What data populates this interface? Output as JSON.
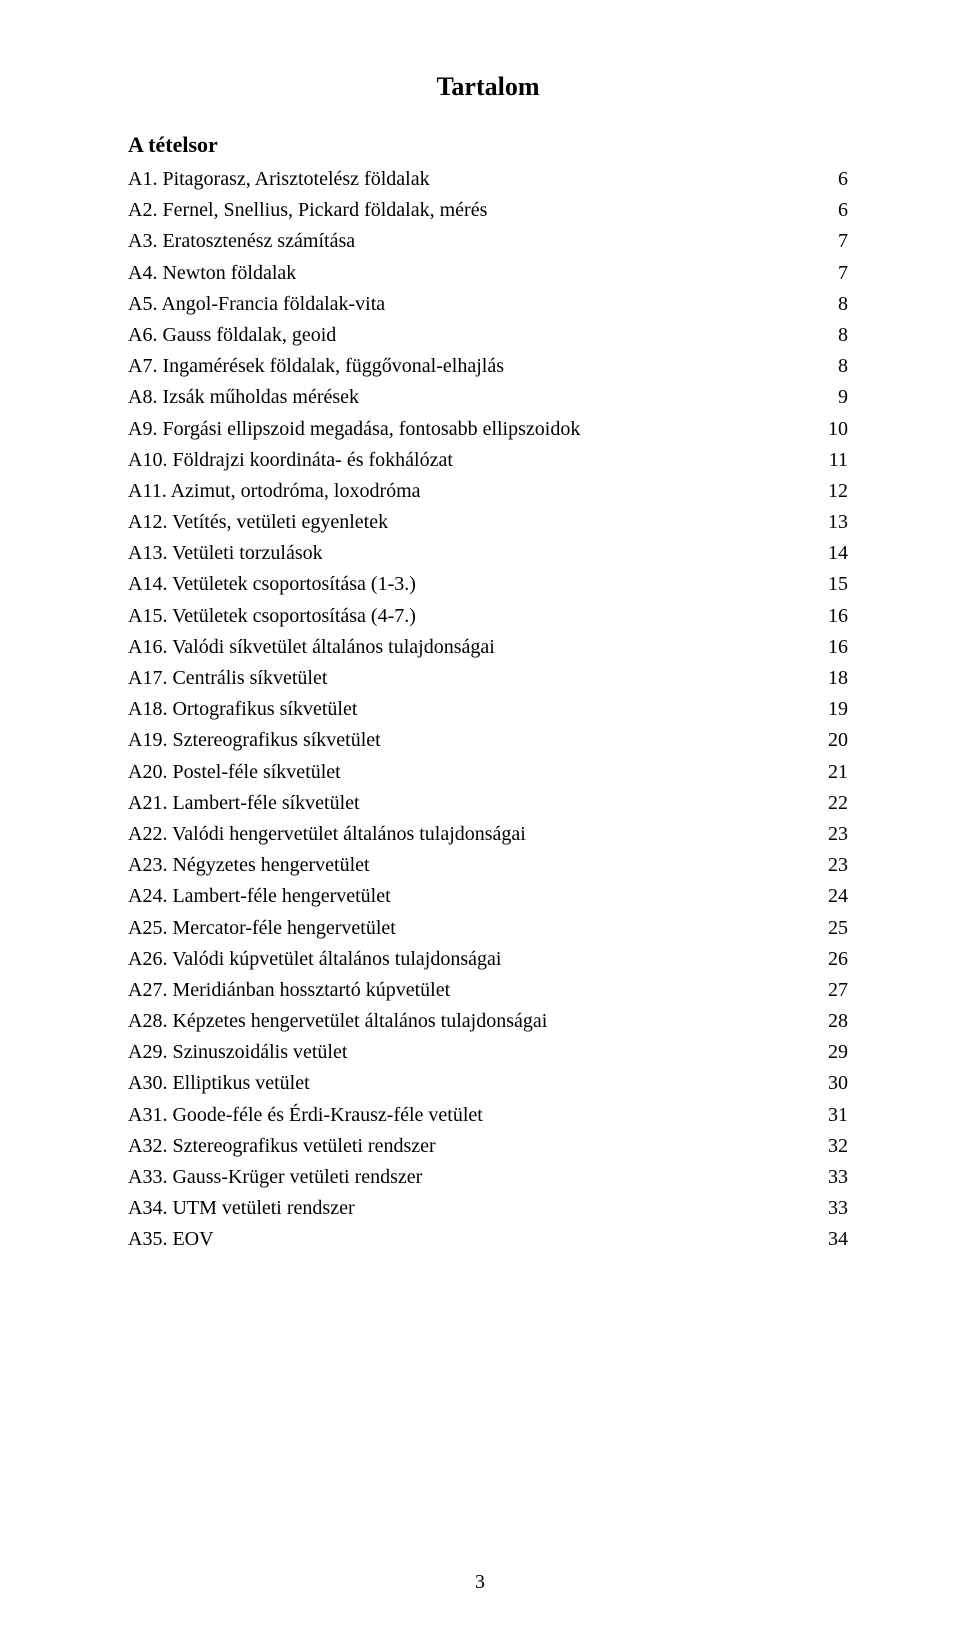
{
  "title": "Tartalom",
  "subtitle": "A tételsor",
  "page_number": "3",
  "toc": [
    {
      "label": "A1. Pitagorasz, Arisztotelész földalak",
      "page": "6"
    },
    {
      "label": "A2. Fernel, Snellius, Pickard földalak, mérés",
      "page": "6"
    },
    {
      "label": "A3. Eratosztenész számítása",
      "page": "7"
    },
    {
      "label": "A4. Newton földalak",
      "page": "7"
    },
    {
      "label": "A5. Angol-Francia földalak-vita",
      "page": "8"
    },
    {
      "label": "A6. Gauss földalak, geoid",
      "page": "8"
    },
    {
      "label": "A7. Ingamérések földalak, függővonal-elhajlás",
      "page": "8"
    },
    {
      "label": "A8. Izsák műholdas mérések",
      "page": "9"
    },
    {
      "label": "A9. Forgási ellipszoid megadása, fontosabb ellipszoidok",
      "page": "10"
    },
    {
      "label": "A10. Földrajzi koordináta- és fokhálózat",
      "page": "11"
    },
    {
      "label": "A11. Azimut, ortodróma, loxodróma",
      "page": "12"
    },
    {
      "label": "A12. Vetítés, vetületi egyenletek",
      "page": "13"
    },
    {
      "label": "A13. Vetületi torzulások",
      "page": "14"
    },
    {
      "label": "A14. Vetületek csoportosítása (1-3.)",
      "page": "15"
    },
    {
      "label": "A15. Vetületek csoportosítása (4-7.)",
      "page": "16"
    },
    {
      "label": "A16. Valódi síkvetület általános tulajdonságai",
      "page": "16"
    },
    {
      "label": "A17. Centrális síkvetület",
      "page": "18"
    },
    {
      "label": "A18. Ortografikus síkvetület",
      "page": "19"
    },
    {
      "label": "A19. Sztereografikus síkvetület",
      "page": "20"
    },
    {
      "label": "A20. Postel-féle síkvetület",
      "page": "21"
    },
    {
      "label": "A21. Lambert-féle síkvetület",
      "page": "22"
    },
    {
      "label": "A22. Valódi hengervetület általános tulajdonságai",
      "page": "23"
    },
    {
      "label": "A23. Négyzetes hengervetület",
      "page": "23"
    },
    {
      "label": "A24. Lambert-féle hengervetület",
      "page": "24"
    },
    {
      "label": "A25. Mercator-féle hengervetület",
      "page": "25"
    },
    {
      "label": "A26. Valódi kúpvetület általános tulajdonságai",
      "page": "26"
    },
    {
      "label": "A27. Meridiánban hossztartó kúpvetület",
      "page": "27"
    },
    {
      "label": "A28. Képzetes hengervetület általános tulajdonságai",
      "page": "28"
    },
    {
      "label": "A29. Szinuszoidális vetület",
      "page": "29"
    },
    {
      "label": "A30. Elliptikus vetület",
      "page": "30"
    },
    {
      "label": "A31. Goode-féle és Érdi-Krausz-féle vetület",
      "page": "31"
    },
    {
      "label": "A32. Sztereografikus vetületi rendszer",
      "page": "32"
    },
    {
      "label": "A33. Gauss-Krüger vetületi rendszer",
      "page": "33"
    },
    {
      "label": "A34. UTM vetületi rendszer",
      "page": "33"
    },
    {
      "label": "A35. EOV",
      "page": "34"
    }
  ]
}
